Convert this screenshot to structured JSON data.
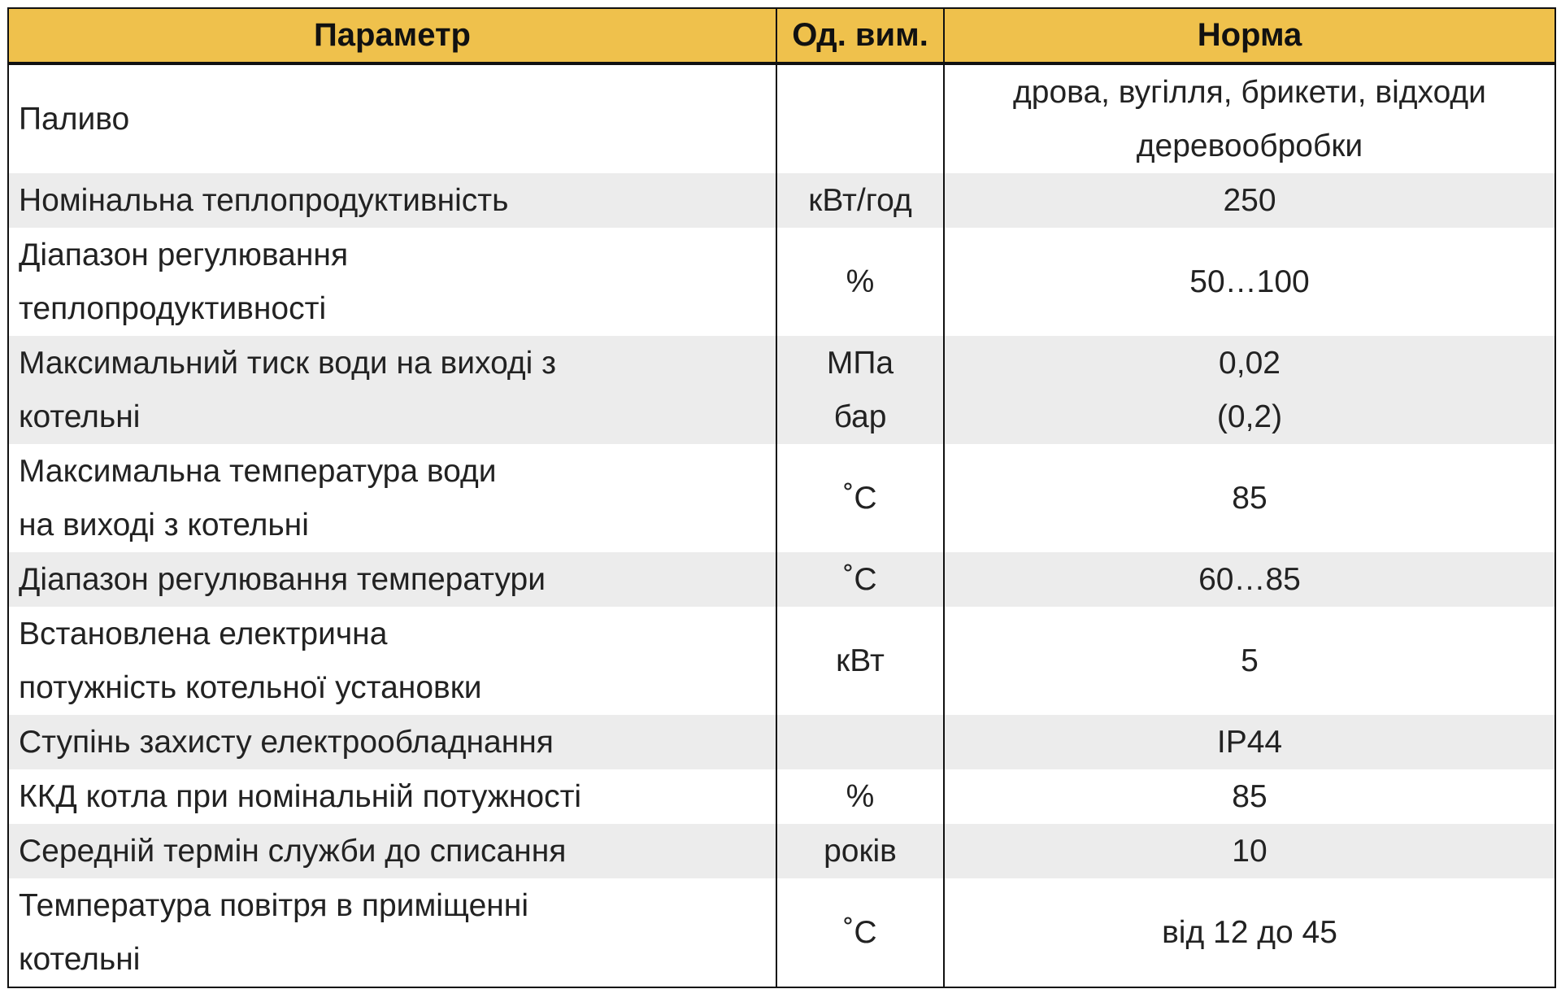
{
  "header": {
    "parameter": "Параметр",
    "unit": "Од. вим.",
    "norm": "Норма"
  },
  "rows": [
    {
      "parameter": [
        "Паливо"
      ],
      "unit": [],
      "norm": [
        "дрова, вугілля, брикети, відходи",
        "деревообробки"
      ]
    },
    {
      "parameter": [
        "Номінальна теплопродуктивність"
      ],
      "unit": [
        "кВт/год"
      ],
      "norm": [
        "250"
      ]
    },
    {
      "parameter": [
        "Діапазон регулювання",
        "теплопродуктивності"
      ],
      "unit": [
        "%"
      ],
      "norm": [
        "50…100"
      ]
    },
    {
      "parameter": [
        "Максимальний тиск води на виході з",
        "котельні"
      ],
      "unit": [
        "МПа",
        "бар"
      ],
      "norm": [
        "0,02",
        "(0,2)"
      ]
    },
    {
      "parameter": [
        "Максимальна температура води",
        "на виході з котельні"
      ],
      "unit": [
        "˚С"
      ],
      "norm": [
        "85"
      ]
    },
    {
      "parameter": [
        "Діапазон регулювання температури"
      ],
      "unit": [
        "˚С"
      ],
      "norm": [
        "60…85"
      ]
    },
    {
      "parameter": [
        "Встановлена електрична",
        "потужність котельної установки"
      ],
      "unit": [
        "кВт"
      ],
      "norm": [
        "5"
      ]
    },
    {
      "parameter": [
        "Ступінь захисту електрообладнання"
      ],
      "unit": [],
      "norm": [
        "IP44"
      ]
    },
    {
      "parameter": [
        "ККД котла при номінальній потужності"
      ],
      "unit": [
        "%"
      ],
      "norm": [
        "85"
      ]
    },
    {
      "parameter": [
        "Середній термін служби до списання"
      ],
      "unit": [
        "років"
      ],
      "norm": [
        "10"
      ]
    },
    {
      "parameter": [
        "Температура повітря в приміщенні",
        "котельні"
      ],
      "unit": [
        "˚С"
      ],
      "norm": [
        "від 12 до 45"
      ]
    }
  ],
  "colors": {
    "header_bg": "#efc14c",
    "stripe": "#ececec",
    "border": "#111111"
  }
}
